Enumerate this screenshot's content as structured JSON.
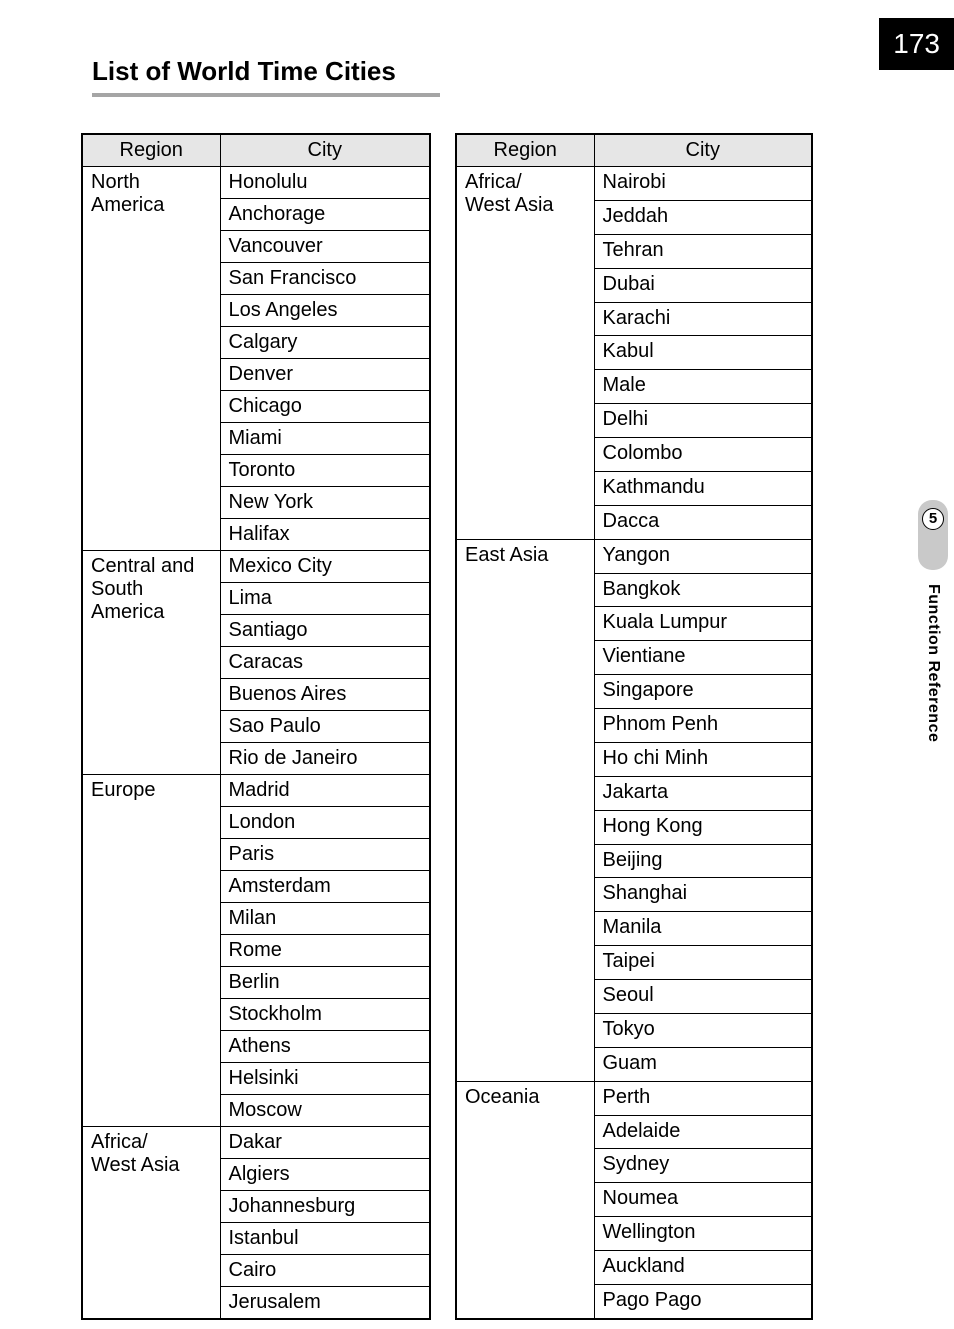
{
  "page_number": "173",
  "section_title": "List of World Time Cities",
  "side_tab": {
    "number": "5",
    "label": "Function Reference"
  },
  "headers": {
    "region": "Region",
    "city": "City"
  },
  "left_table": {
    "groups": [
      {
        "region": "North America",
        "cities": [
          "Honolulu",
          "Anchorage",
          "Vancouver",
          "San Francisco",
          "Los Angeles",
          "Calgary",
          "Denver",
          "Chicago",
          "Miami",
          "Toronto",
          "New York",
          "Halifax"
        ]
      },
      {
        "region": "Central and South America",
        "cities": [
          "Mexico City",
          "Lima",
          "Santiago",
          "Caracas",
          "Buenos Aires",
          "Sao Paulo",
          "Rio de Janeiro"
        ]
      },
      {
        "region": "Europe",
        "cities": [
          "Madrid",
          "London",
          "Paris",
          "Amsterdam",
          "Milan",
          "Rome",
          "Berlin",
          "Stockholm",
          "Athens",
          "Helsinki",
          "Moscow"
        ]
      },
      {
        "region": "Africa/ West Asia",
        "cities": [
          "Dakar",
          "Algiers",
          "Johannesburg",
          "Istanbul",
          "Cairo",
          "Jerusalem"
        ]
      }
    ]
  },
  "right_table": {
    "groups": [
      {
        "region": "Africa/ West Asia",
        "cities": [
          "Nairobi",
          "Jeddah",
          "Tehran",
          "Dubai",
          "Karachi",
          "Kabul",
          "Male",
          "Delhi",
          "Colombo",
          "Kathmandu",
          "Dacca"
        ]
      },
      {
        "region": "East Asia",
        "cities": [
          "Yangon",
          "Bangkok",
          "Kuala Lumpur",
          "Vientiane",
          "Singapore",
          "Phnom Penh",
          "Ho chi Minh",
          "Jakarta",
          "Hong Kong",
          "Beijing",
          "Shanghai",
          "Manila",
          "Taipei",
          "Seoul",
          "Tokyo",
          "Guam"
        ]
      },
      {
        "region": "Oceania",
        "cities": [
          "Perth",
          "Adelaide",
          "Sydney",
          "Noumea",
          "Wellington",
          "Auckland",
          "Pago Pago"
        ]
      }
    ]
  },
  "colors": {
    "header_bg": "#e6e6e6",
    "border": "#000000",
    "page_num_bg": "#000000",
    "page_num_fg": "#ffffff",
    "tab_bg": "#c9c9c9",
    "section_underline": "#a5a5a5"
  }
}
